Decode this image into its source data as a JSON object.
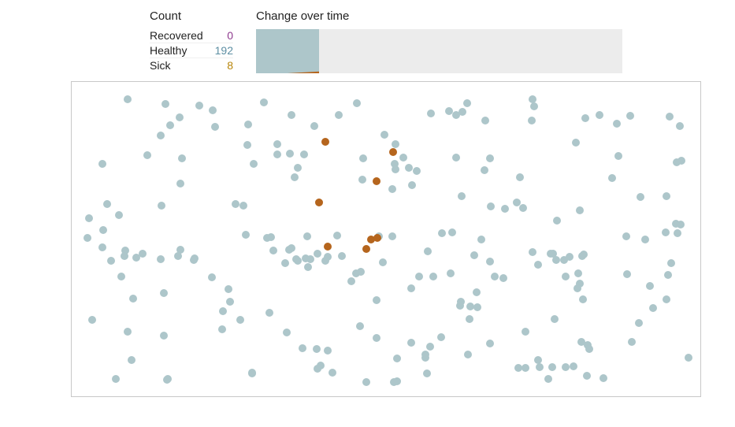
{
  "count": {
    "title": "Count",
    "rows": [
      {
        "label": "Recovered",
        "value": "0",
        "color": "#8e3a8e"
      },
      {
        "label": "Healthy",
        "value": "192",
        "color": "#5d8fa3"
      },
      {
        "label": "Sick",
        "value": "8",
        "color": "#b8860b"
      }
    ]
  },
  "chart": {
    "title": "Change over time",
    "colors": {
      "healthy": "#adc6ca",
      "sick": "#b5651d",
      "background": "#ececec"
    },
    "elapsed_fraction": 0.172,
    "final_sick_fraction": 0.04
  },
  "simulation": {
    "colors": {
      "healthy": "#adc6ca",
      "sick": "#b5651d"
    },
    "healthy_count": 192,
    "sick_count": 8
  }
}
